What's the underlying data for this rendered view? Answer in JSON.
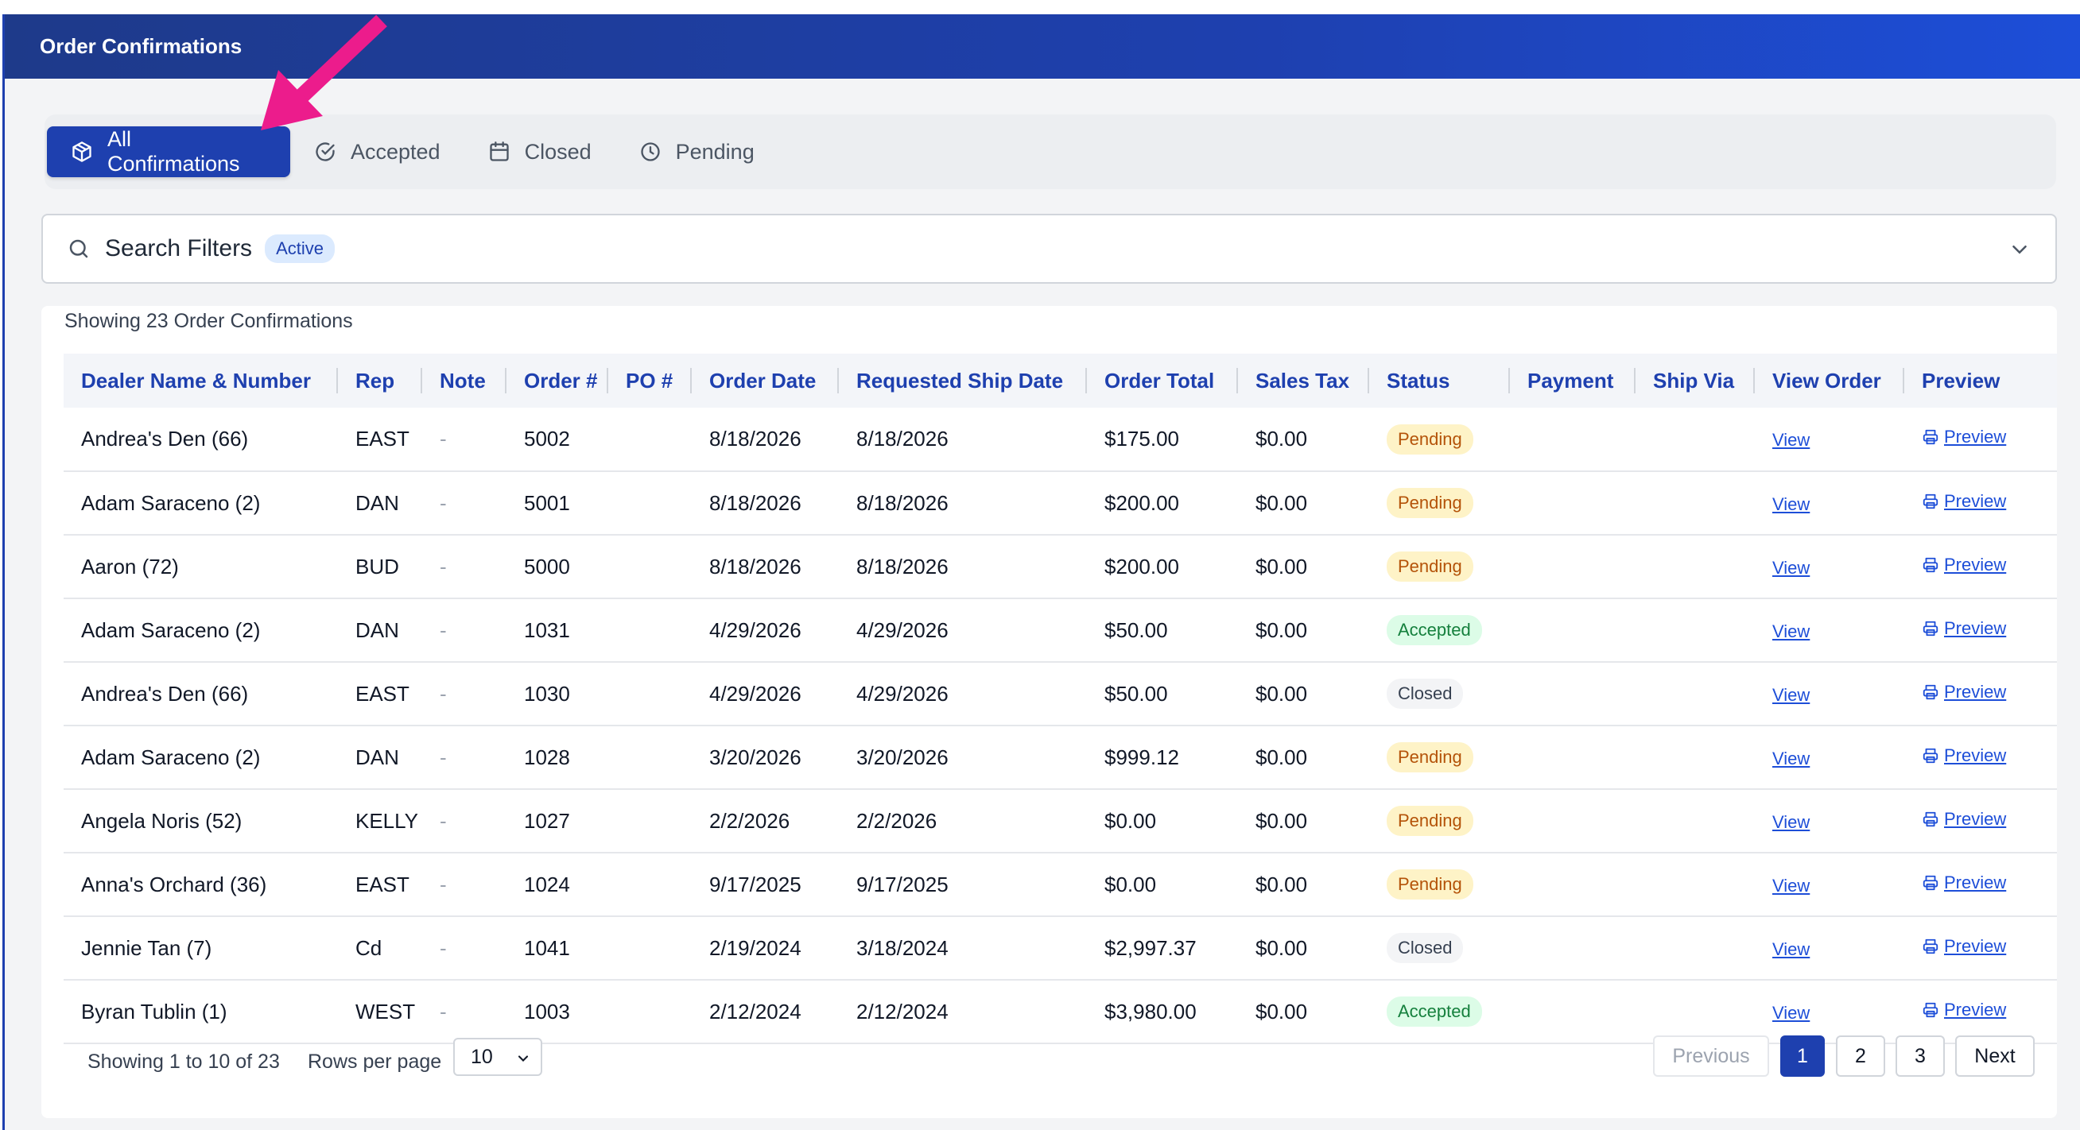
{
  "header": {
    "title": "Order Confirmations"
  },
  "tabs": [
    {
      "label": "All Confirmations",
      "icon": "box-icon",
      "active": true
    },
    {
      "label": "Accepted",
      "icon": "check-circle-icon",
      "active": false
    },
    {
      "label": "Closed",
      "icon": "calendar-icon",
      "active": false
    },
    {
      "label": "Pending",
      "icon": "clock-icon",
      "active": false
    }
  ],
  "filters": {
    "title": "Search Filters",
    "badge": "Active"
  },
  "summary": {
    "showing_top": "Showing 23 Order Confirmations"
  },
  "table": {
    "columns": [
      "Dealer Name & Number",
      "Rep",
      "Note",
      "Order #",
      "PO #",
      "Order Date",
      "Requested Ship Date",
      "Order Total",
      "Sales Tax",
      "Status",
      "Payment",
      "Ship Via",
      "View Order",
      "Preview"
    ],
    "link_view": "View",
    "link_preview": "Preview",
    "rows": [
      {
        "dealer": "Andrea's Den (66)",
        "rep": "EAST",
        "note": "-",
        "order": "5002",
        "po": "",
        "order_date": "8/18/2026",
        "ship_date": "8/18/2026",
        "total": "$175.00",
        "tax": "$0.00",
        "status": "Pending"
      },
      {
        "dealer": "Adam Saraceno (2)",
        "rep": "DAN",
        "note": "-",
        "order": "5001",
        "po": "",
        "order_date": "8/18/2026",
        "ship_date": "8/18/2026",
        "total": "$200.00",
        "tax": "$0.00",
        "status": "Pending"
      },
      {
        "dealer": "Aaron (72)",
        "rep": "BUD",
        "note": "-",
        "order": "5000",
        "po": "",
        "order_date": "8/18/2026",
        "ship_date": "8/18/2026",
        "total": "$200.00",
        "tax": "$0.00",
        "status": "Pending"
      },
      {
        "dealer": "Adam Saraceno (2)",
        "rep": "DAN",
        "note": "-",
        "order": "1031",
        "po": "",
        "order_date": "4/29/2026",
        "ship_date": "4/29/2026",
        "total": "$50.00",
        "tax": "$0.00",
        "status": "Accepted"
      },
      {
        "dealer": "Andrea's Den (66)",
        "rep": "EAST",
        "note": "-",
        "order": "1030",
        "po": "",
        "order_date": "4/29/2026",
        "ship_date": "4/29/2026",
        "total": "$50.00",
        "tax": "$0.00",
        "status": "Closed"
      },
      {
        "dealer": "Adam Saraceno (2)",
        "rep": "DAN",
        "note": "-",
        "order": "1028",
        "po": "",
        "order_date": "3/20/2026",
        "ship_date": "3/20/2026",
        "total": "$999.12",
        "tax": "$0.00",
        "status": "Pending"
      },
      {
        "dealer": "Angela Noris (52)",
        "rep": "KELLY",
        "note": "-",
        "order": "1027",
        "po": "",
        "order_date": "2/2/2026",
        "ship_date": "2/2/2026",
        "total": "$0.00",
        "tax": "$0.00",
        "status": "Pending"
      },
      {
        "dealer": "Anna's Orchard (36)",
        "rep": "EAST",
        "note": "-",
        "order": "1024",
        "po": "",
        "order_date": "9/17/2025",
        "ship_date": "9/17/2025",
        "total": "$0.00",
        "tax": "$0.00",
        "status": "Pending"
      },
      {
        "dealer": "Jennie Tan (7)",
        "rep": "Cd",
        "note": "-",
        "order": "1041",
        "po": "",
        "order_date": "2/19/2024",
        "ship_date": "3/18/2024",
        "total": "$2,997.37",
        "tax": "$0.00",
        "status": "Closed"
      },
      {
        "dealer": "Byran Tublin (1)",
        "rep": "WEST",
        "note": "-",
        "order": "1003",
        "po": "",
        "order_date": "2/12/2024",
        "ship_date": "2/12/2024",
        "total": "$3,980.00",
        "tax": "$0.00",
        "status": "Accepted"
      }
    ]
  },
  "footer": {
    "showing": "Showing 1 to 10 of 23",
    "rows_label": "Rows per page",
    "rows_value": "10",
    "previous": "Previous",
    "pages": [
      "1",
      "2",
      "3"
    ],
    "current_page": "1",
    "next": "Next"
  },
  "colors": {
    "brand": "#1e40af",
    "annotation_arrow": "#ec1c8c"
  }
}
